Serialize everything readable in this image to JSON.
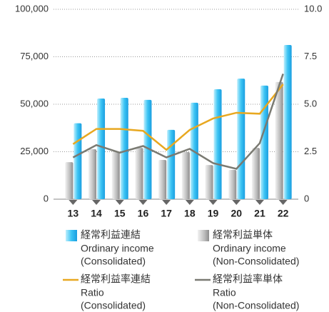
{
  "chart_data": {
    "type": "bar-line",
    "categories": [
      "13",
      "14",
      "15",
      "16",
      "17",
      "18",
      "19",
      "20",
      "21",
      "22"
    ],
    "ylim": [
      0,
      100000
    ],
    "yticks": [
      0,
      {
        "value": 25000,
        "label": "25,000"
      },
      {
        "value": 50000,
        "label": "50,000"
      },
      {
        "value": 75000,
        "label": "75,000"
      },
      {
        "value": 100000,
        "label": "100,000"
      }
    ],
    "y2lim": [
      0,
      10
    ],
    "y2ticks": [
      0,
      2.5,
      {
        "value": 5,
        "label": "5.0"
      },
      7.5,
      {
        "value": 10,
        "label": "10.0"
      }
    ],
    "grid": true,
    "series": [
      {
        "name": "経常利益単体",
        "description": [
          "Ordinary income",
          "(Non-Consolidated)"
        ],
        "kind": "bar",
        "color": "#b0b0b0",
        "values": [
          19500,
          26300,
          24800,
          27000,
          20700,
          24800,
          18000,
          15400,
          27000,
          61700
        ]
      },
      {
        "name": "経常利益連結",
        "description": [
          "Ordinary income",
          "(Consolidated)"
        ],
        "kind": "bar",
        "color": "#29b6f0",
        "values": [
          40000,
          53000,
          53400,
          52300,
          36500,
          50800,
          57900,
          63500,
          59800,
          81200
        ]
      },
      {
        "name": "経常利益率連結",
        "description": [
          "Ratio",
          "(Consolidated)"
        ],
        "kind": "line",
        "axis": "y2",
        "color": "#e8a820",
        "values": [
          2.9,
          3.7,
          3.7,
          3.6,
          2.6,
          3.65,
          4.25,
          4.55,
          4.5,
          6.05
        ]
      },
      {
        "name": "経常利益率単体",
        "description": [
          "Ratio",
          "(Non-Consolidated)"
        ],
        "kind": "line",
        "axis": "y2",
        "color": "#7a7a72",
        "values": [
          2.2,
          2.85,
          2.45,
          2.8,
          2.2,
          2.65,
          1.9,
          1.6,
          2.95,
          6.6
        ]
      }
    ]
  }
}
